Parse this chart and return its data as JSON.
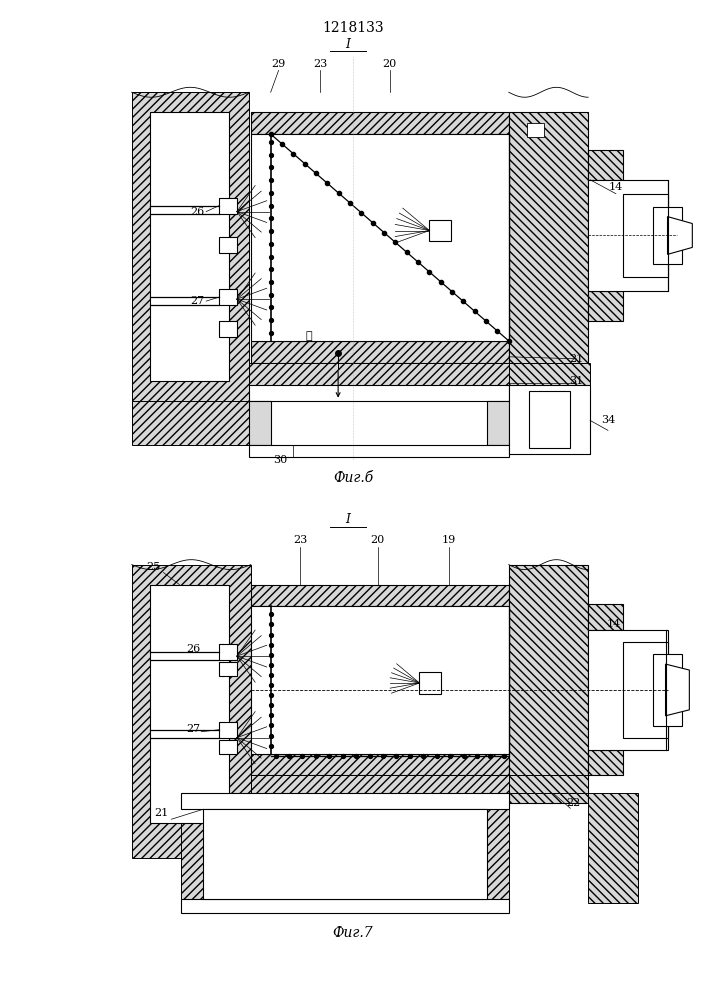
{
  "title": "1218133",
  "title_fontsize": 10,
  "fig_width": 7.07,
  "fig_height": 10.0,
  "bg_color": "#ffffff",
  "line_color": "#000000",
  "fig6_caption": "Фиг.б",
  "fig7_caption": "Фиг.7",
  "section_label": "I"
}
